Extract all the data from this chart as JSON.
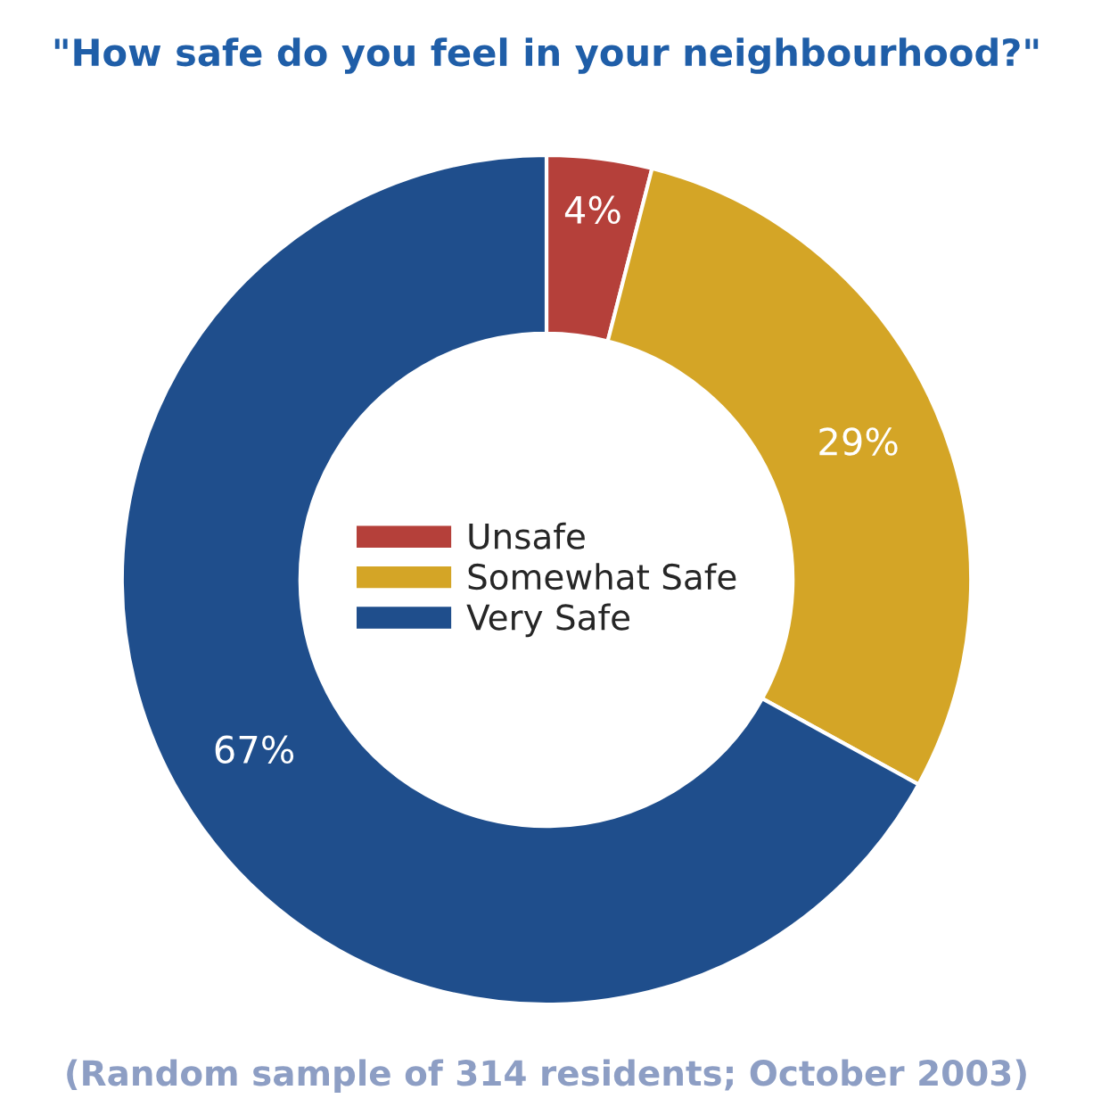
{
  "chart_data": {
    "type": "donut",
    "title": "\"How safe do you feel in your neighbourhood?\"",
    "categories": [
      "Unsafe",
      "Somewhat Safe",
      "Very Safe"
    ],
    "values": [
      4,
      29,
      67
    ],
    "colors": [
      "#b5403a",
      "#d4a526",
      "#1f4e8c"
    ],
    "data_labels": true,
    "value_labels": [
      "4%",
      "29%",
      "67%"
    ],
    "legend": "center",
    "annotations": [
      "(Random sample of 314 residents; October 2003)"
    ]
  }
}
